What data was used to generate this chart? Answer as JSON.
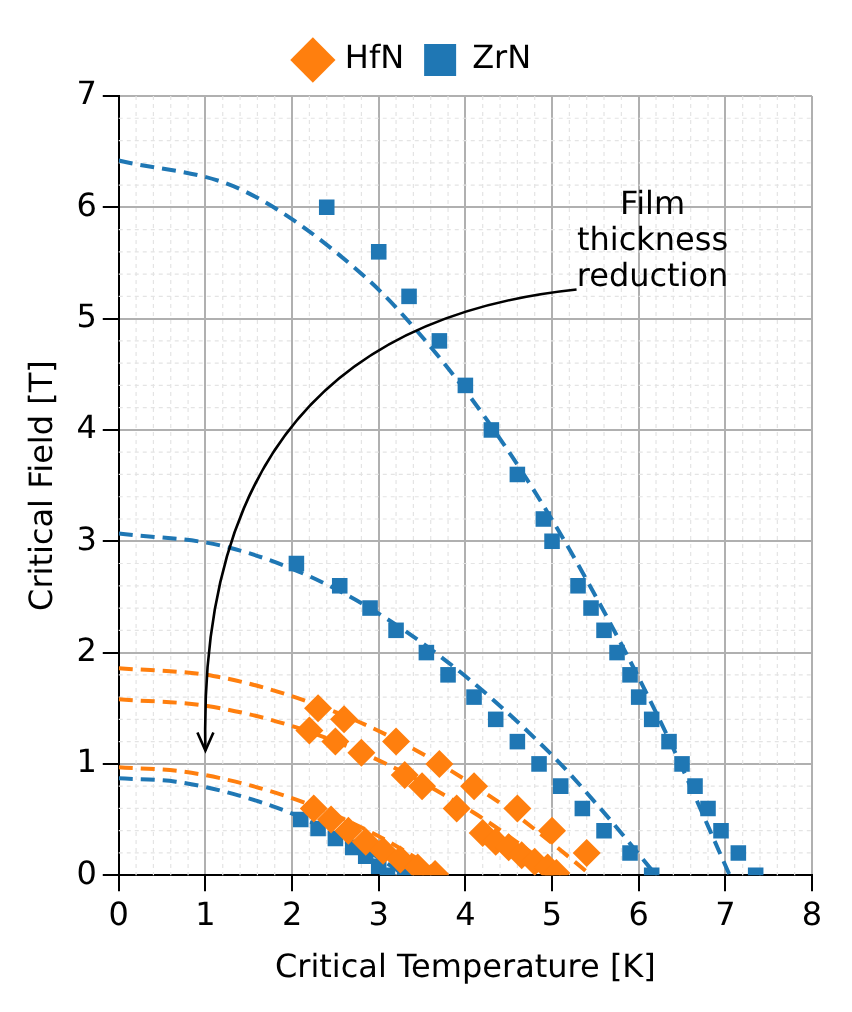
{
  "chart_data": {
    "type": "scatter",
    "xlabel": "Critical Temperature [K]",
    "ylabel": "Critical Field [T]",
    "xlim": [
      0,
      8
    ],
    "ylim": [
      0,
      7
    ],
    "xticks": [
      0,
      1,
      2,
      3,
      4,
      5,
      6,
      7,
      8
    ],
    "yticks": [
      0,
      1,
      2,
      3,
      4,
      5,
      6,
      7
    ],
    "grid": true,
    "legend": "top",
    "annotations": [
      "Film\nthickness\nreduction"
    ],
    "series": [
      {
        "type": "line",
        "color": "#1f77b4",
        "line_style": "dashed",
        "marker": "none",
        "x": [
          0,
          1.41,
          2.82,
          3.53,
          4.23,
          4.94,
          5.64,
          6.35,
          7.05
        ],
        "values": [
          6.42,
          6.16,
          5.39,
          4.81,
          4.11,
          3.27,
          2.31,
          1.22,
          0
        ]
      },
      {
        "type": "line",
        "color": "#1f77b4",
        "line_style": "dashed",
        "marker": "none",
        "x": [
          0,
          1.24,
          2.48,
          3.72,
          4.96,
          5.58,
          6.2
        ],
        "values": [
          3.07,
          2.95,
          2.58,
          1.96,
          1.11,
          0.58,
          0
        ]
      },
      {
        "type": "line",
        "color": "#1f77b4",
        "line_style": "dashed",
        "marker": "none",
        "x": [
          0,
          0.66,
          1.32,
          1.98,
          2.64,
          2.97,
          3.3
        ],
        "values": [
          0.87,
          0.84,
          0.73,
          0.56,
          0.31,
          0.17,
          0
        ]
      },
      {
        "type": "line",
        "color": "#ff7f0e",
        "line_style": "dashed",
        "marker": "none",
        "x": [
          0,
          1.09,
          2.18,
          3.27,
          4.36,
          4.9,
          5.45
        ],
        "values": [
          1.86,
          1.79,
          1.56,
          1.19,
          0.67,
          0.35,
          0
        ]
      },
      {
        "type": "line",
        "color": "#ff7f0e",
        "line_style": "dashed",
        "marker": "none",
        "x": [
          0,
          1.02,
          2.04,
          3.06,
          4.08,
          4.59,
          5.1
        ],
        "values": [
          1.58,
          1.52,
          1.33,
          1.01,
          0.57,
          0.3,
          0
        ]
      },
      {
        "type": "line",
        "color": "#ff7f0e",
        "line_style": "dashed",
        "marker": "none",
        "x": [
          0,
          0.75,
          1.5,
          2.25,
          3.0,
          3.38,
          3.75
        ],
        "values": [
          0.97,
          0.93,
          0.81,
          0.62,
          0.35,
          0.18,
          0
        ]
      },
      {
        "name": "HfN",
        "type": "scatter",
        "color": "#ff7f0e",
        "marker": "diamond",
        "x": [
          2.3,
          2.6,
          2.2,
          2.5,
          2.8,
          3.2,
          3.3,
          3.5,
          3.7,
          3.9,
          4.1,
          4.6,
          5.0,
          5.4,
          4.2,
          4.35,
          4.5,
          4.65,
          4.8,
          4.95,
          5.05,
          2.25,
          2.45,
          2.65,
          2.85,
          3.05,
          3.25,
          3.45,
          3.65
        ],
        "values": [
          1.5,
          1.4,
          1.3,
          1.2,
          1.1,
          1.2,
          0.9,
          0.8,
          1.0,
          0.6,
          0.8,
          0.6,
          0.4,
          0.2,
          0.38,
          0.3,
          0.25,
          0.18,
          0.12,
          0.07,
          0.02,
          0.6,
          0.5,
          0.4,
          0.3,
          0.22,
          0.14,
          0.07,
          0.01
        ]
      },
      {
        "name": "ZrN",
        "type": "scatter",
        "color": "#1f77b4",
        "marker": "square",
        "x": [
          2.4,
          3.0,
          3.35,
          3.7,
          4.0,
          4.3,
          4.6,
          4.9,
          5.0,
          5.3,
          5.45,
          5.6,
          5.75,
          5.9,
          6.0,
          6.15,
          6.35,
          6.5,
          6.65,
          6.8,
          6.95,
          7.15,
          7.35,
          2.05,
          2.55,
          2.9,
          3.2,
          3.55,
          3.8,
          4.1,
          4.35,
          4.6,
          4.85,
          5.1,
          5.35,
          5.6,
          5.9,
          6.15,
          2.1,
          2.3,
          2.5,
          2.7,
          2.85,
          3.0,
          3.1,
          3.3
        ],
        "values": [
          6.0,
          5.6,
          5.2,
          4.8,
          4.4,
          4.0,
          3.6,
          3.2,
          3.0,
          2.6,
          2.4,
          2.2,
          2.0,
          1.8,
          1.6,
          1.4,
          1.2,
          1.0,
          0.8,
          0.6,
          0.4,
          0.2,
          0.0,
          2.8,
          2.6,
          2.4,
          2.2,
          2.0,
          1.8,
          1.6,
          1.4,
          1.2,
          1.0,
          0.8,
          0.6,
          0.4,
          0.2,
          0.0,
          0.5,
          0.42,
          0.33,
          0.25,
          0.17,
          0.08,
          0.0,
          0.0
        ]
      }
    ]
  }
}
